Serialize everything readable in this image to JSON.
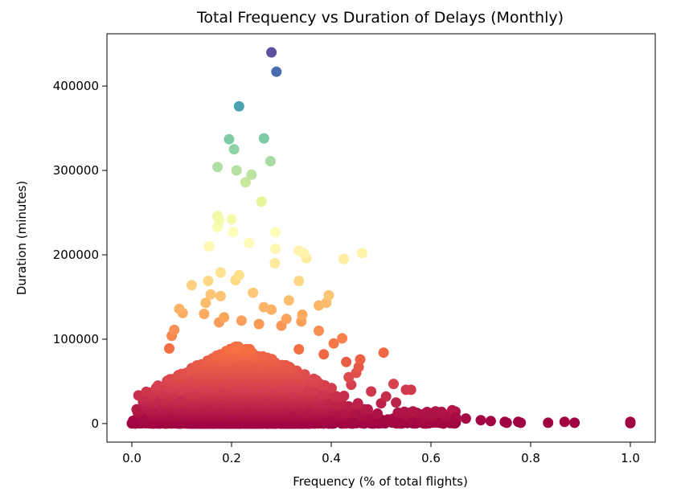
{
  "chart_data": {
    "type": "scatter",
    "title": "Total Frequency vs Duration of Delays (Monthly)",
    "xlabel": "Frequency (% of total flights)",
    "ylabel": "Duration (minutes)",
    "xlim": [
      -0.05,
      1.05
    ],
    "ylim": [
      -22000,
      462000
    ],
    "x_ticks": [
      0.0,
      0.2,
      0.4,
      0.6,
      0.8,
      1.0
    ],
    "x_tick_labels": [
      "0.0",
      "0.2",
      "0.4",
      "0.6",
      "0.8",
      "1.0"
    ],
    "y_ticks": [
      0,
      100000,
      200000,
      300000,
      400000
    ],
    "y_tick_labels": [
      "0",
      "100000",
      "200000",
      "300000",
      "400000"
    ],
    "grid": false,
    "colormap": "Spectral",
    "color_encodes": "y",
    "points": [
      {
        "x": 0.28,
        "y": 440000
      },
      {
        "x": 0.29,
        "y": 417000
      },
      {
        "x": 0.215,
        "y": 376000
      },
      {
        "x": 0.195,
        "y": 337000
      },
      {
        "x": 0.265,
        "y": 338000
      },
      {
        "x": 0.205,
        "y": 325000
      },
      {
        "x": 0.278,
        "y": 311000
      },
      {
        "x": 0.172,
        "y": 304000
      },
      {
        "x": 0.21,
        "y": 300000
      },
      {
        "x": 0.24,
        "y": 295000
      },
      {
        "x": 0.228,
        "y": 286000
      },
      {
        "x": 0.26,
        "y": 263000
      },
      {
        "x": 0.172,
        "y": 246000
      },
      {
        "x": 0.175,
        "y": 241000
      },
      {
        "x": 0.2,
        "y": 242000
      },
      {
        "x": 0.172,
        "y": 233000
      },
      {
        "x": 0.203,
        "y": 227000
      },
      {
        "x": 0.288,
        "y": 227000
      },
      {
        "x": 0.235,
        "y": 214000
      },
      {
        "x": 0.155,
        "y": 210000
      },
      {
        "x": 0.288,
        "y": 207000
      },
      {
        "x": 0.335,
        "y": 205000
      },
      {
        "x": 0.345,
        "y": 202000
      },
      {
        "x": 0.462,
        "y": 202000
      },
      {
        "x": 0.35,
        "y": 196000
      },
      {
        "x": 0.425,
        "y": 195000
      },
      {
        "x": 0.287,
        "y": 190000
      },
      {
        "x": 0.178,
        "y": 179000
      },
      {
        "x": 0.215,
        "y": 176000
      },
      {
        "x": 0.208,
        "y": 170000
      },
      {
        "x": 0.153,
        "y": 169000
      },
      {
        "x": 0.335,
        "y": 169000
      },
      {
        "x": 0.12,
        "y": 164000
      },
      {
        "x": 0.243,
        "y": 155000
      },
      {
        "x": 0.158,
        "y": 153000
      },
      {
        "x": 0.395,
        "y": 152000
      },
      {
        "x": 0.178,
        "y": 151000
      },
      {
        "x": 0.315,
        "y": 146000
      },
      {
        "x": 0.39,
        "y": 143000
      },
      {
        "x": 0.148,
        "y": 143000
      },
      {
        "x": 0.375,
        "y": 140000
      },
      {
        "x": 0.265,
        "y": 138000
      },
      {
        "x": 0.095,
        "y": 136000
      },
      {
        "x": 0.28,
        "y": 135000
      },
      {
        "x": 0.102,
        "y": 131000
      },
      {
        "x": 0.145,
        "y": 130000
      },
      {
        "x": 0.342,
        "y": 129000
      },
      {
        "x": 0.185,
        "y": 126000
      },
      {
        "x": 0.31,
        "y": 124000
      },
      {
        "x": 0.22,
        "y": 122000
      },
      {
        "x": 0.34,
        "y": 121000
      },
      {
        "x": 0.175,
        "y": 120000
      },
      {
        "x": 0.255,
        "y": 118000
      },
      {
        "x": 0.085,
        "y": 111000
      },
      {
        "x": 0.3,
        "y": 116000
      },
      {
        "x": 0.375,
        "y": 110000
      },
      {
        "x": 0.08,
        "y": 104000
      },
      {
        "x": 0.422,
        "y": 101000
      },
      {
        "x": 0.405,
        "y": 95000
      },
      {
        "x": 0.075,
        "y": 89000
      },
      {
        "x": 0.335,
        "y": 88000
      },
      {
        "x": 0.505,
        "y": 84000
      },
      {
        "x": 0.385,
        "y": 82000
      },
      {
        "x": 0.458,
        "y": 76000
      },
      {
        "x": 0.43,
        "y": 73000
      },
      {
        "x": 0.455,
        "y": 67000
      },
      {
        "x": 0.45,
        "y": 60000
      },
      {
        "x": 0.435,
        "y": 55000
      },
      {
        "x": 0.525,
        "y": 47000
      },
      {
        "x": 0.44,
        "y": 46000
      },
      {
        "x": 0.55,
        "y": 40000
      },
      {
        "x": 0.56,
        "y": 40000
      },
      {
        "x": 0.48,
        "y": 38000
      },
      {
        "x": 0.51,
        "y": 32000
      },
      {
        "x": 0.5,
        "y": 24000
      },
      {
        "x": 0.53,
        "y": 25000
      },
      {
        "x": 0.6,
        "y": 12000
      },
      {
        "x": 0.65,
        "y": 7000
      },
      {
        "x": 0.67,
        "y": 6000
      },
      {
        "x": 0.7,
        "y": 4000
      },
      {
        "x": 0.72,
        "y": 3000
      },
      {
        "x": 0.748,
        "y": 2000
      },
      {
        "x": 0.752,
        "y": 1000
      },
      {
        "x": 0.775,
        "y": 2000
      },
      {
        "x": 0.78,
        "y": 1000
      },
      {
        "x": 0.835,
        "y": 1000
      },
      {
        "x": 0.868,
        "y": 2000
      },
      {
        "x": 0.888,
        "y": 1000
      },
      {
        "x": 1.0,
        "y": 2000
      },
      {
        "x": 1.0,
        "y": 500
      }
    ]
  }
}
